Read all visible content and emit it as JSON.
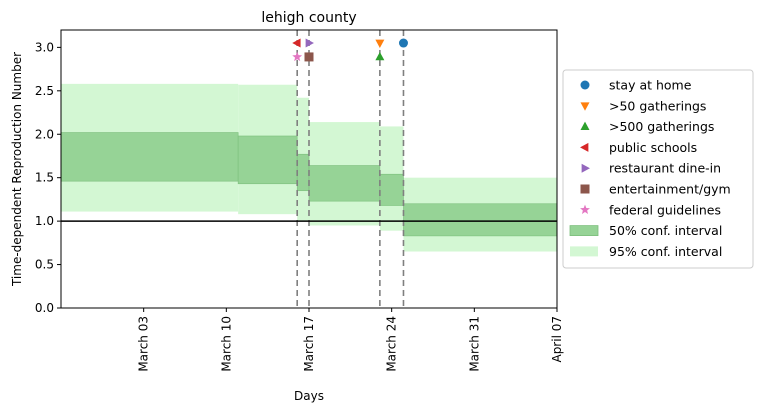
{
  "chart_data": {
    "type": "line",
    "title": "lehigh county",
    "xlabel": "Days",
    "ylabel": "Time-dependent Reproduction Number",
    "xlim": [
      "2020-02-25",
      "2020-04-07"
    ],
    "ylim": [
      0.0,
      3.2
    ],
    "xticks": [
      {
        "date": "2020-03-03",
        "label": "March 03"
      },
      {
        "date": "2020-03-10",
        "label": "March 10"
      },
      {
        "date": "2020-03-17",
        "label": "March 17"
      },
      {
        "date": "2020-03-24",
        "label": "March 24"
      },
      {
        "date": "2020-03-31",
        "label": "March 31"
      },
      {
        "date": "2020-04-07",
        "label": "April 07"
      }
    ],
    "yticks": [
      "0.0",
      "0.5",
      "1.0",
      "1.5",
      "2.0",
      "2.5",
      "3.0"
    ],
    "reference_line": 1.0,
    "ci50": [
      {
        "start": "2020-02-25",
        "end": "2020-03-11",
        "low": 1.46,
        "high": 2.02
      },
      {
        "start": "2020-03-11",
        "end": "2020-03-16",
        "low": 1.43,
        "high": 1.98
      },
      {
        "start": "2020-03-16",
        "end": "2020-03-17",
        "low": 1.35,
        "high": 1.77
      },
      {
        "start": "2020-03-17",
        "end": "2020-03-23",
        "low": 1.23,
        "high": 1.64
      },
      {
        "start": "2020-03-23",
        "end": "2020-03-25",
        "low": 1.18,
        "high": 1.54
      },
      {
        "start": "2020-03-25",
        "end": "2020-04-07",
        "low": 0.83,
        "high": 1.2
      }
    ],
    "ci95": [
      {
        "start": "2020-02-25",
        "end": "2020-03-11",
        "low": 1.11,
        "high": 2.58
      },
      {
        "start": "2020-03-11",
        "end": "2020-03-16",
        "low": 1.08,
        "high": 2.57
      },
      {
        "start": "2020-03-16",
        "end": "2020-03-17",
        "low": 1.0,
        "high": 2.42
      },
      {
        "start": "2020-03-17",
        "end": "2020-03-23",
        "low": 0.95,
        "high": 2.14
      },
      {
        "start": "2020-03-23",
        "end": "2020-03-25",
        "low": 0.89,
        "high": 2.09
      },
      {
        "start": "2020-03-25",
        "end": "2020-04-07",
        "low": 0.65,
        "high": 1.5
      }
    ],
    "interventions": [
      {
        "date": "2020-03-16",
        "label": "public schools"
      },
      {
        "date": "2020-03-17",
        "label": "restaurant dine-in"
      },
      {
        "date": "2020-03-23",
        "label": ">50 gatherings"
      },
      {
        "date": "2020-03-25",
        "label": "stay at home"
      }
    ],
    "markers": [
      {
        "label": "public schools",
        "date": "2020-03-16",
        "y": 3.05,
        "shape": "triangle-left",
        "color": "#d62728"
      },
      {
        "label": "restaurant dine-in",
        "date": "2020-03-17",
        "y": 3.05,
        "shape": "triangle-right",
        "color": "#9467bd"
      },
      {
        "label": "federal guidelines",
        "date": "2020-03-16",
        "y": 2.89,
        "shape": "star",
        "color": "#e377c2"
      },
      {
        "label": "entertainment/gym",
        "date": "2020-03-17",
        "y": 2.89,
        "shape": "square",
        "color": "#8c564b"
      },
      {
        "label": ">50 gatherings",
        "date": "2020-03-23",
        "y": 3.05,
        "shape": "triangle-down",
        "color": "#ff7f0e"
      },
      {
        "label": ">500 gatherings",
        "date": "2020-03-23",
        "y": 2.89,
        "shape": "triangle-up",
        "color": "#2ca02c"
      },
      {
        "label": "stay at home",
        "date": "2020-03-25",
        "y": 3.05,
        "shape": "circle",
        "color": "#1f77b4"
      }
    ],
    "legend": {
      "placement": "right",
      "entries": [
        {
          "label": "stay at home",
          "shape": "circle",
          "color": "#1f77b4"
        },
        {
          "label": ">50 gatherings",
          "shape": "triangle-down",
          "color": "#ff7f0e"
        },
        {
          "label": ">500 gatherings",
          "shape": "triangle-up",
          "color": "#2ca02c"
        },
        {
          "label": "public schools",
          "shape": "triangle-left",
          "color": "#d62728"
        },
        {
          "label": "restaurant dine-in",
          "shape": "triangle-right",
          "color": "#9467bd"
        },
        {
          "label": "entertainment/gym",
          "shape": "square",
          "color": "#8c564b"
        },
        {
          "label": "federal guidelines",
          "shape": "star",
          "color": "#e377c2"
        },
        {
          "label": "50% conf. interval",
          "shape": "patch",
          "color": "#96d396"
        },
        {
          "label": "95% conf. interval",
          "shape": "patch",
          "color": "#d3f7d3"
        }
      ]
    },
    "colors": {
      "ci50_fill": "#96d396",
      "ci50_edge": "#7cbf7c",
      "ci95_fill": "#d3f7d3",
      "reference_line": "#000000",
      "intervention_line": "#7f7f7f"
    }
  }
}
